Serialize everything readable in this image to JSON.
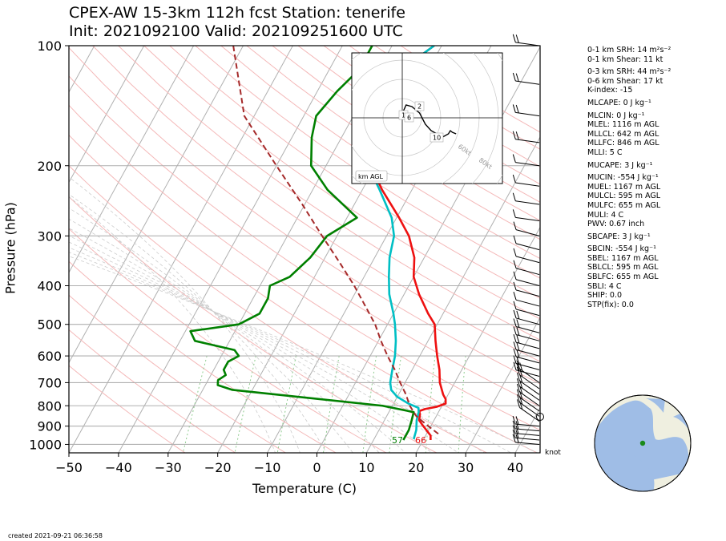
{
  "title_line1": "CPEX-AW 15-3km  112h fcst  Station: tenerife",
  "title_line2": "Init: 2021092100  Valid: 202109251600 UTC",
  "created": "created 2021-09-21 06:36:58",
  "knot_label": "knot",
  "hodograph": {
    "label": "km AGL",
    "ring_labels": [
      "60kt",
      "80kt"
    ],
    "height_labels": [
      "2",
      "1",
      "6",
      "10"
    ],
    "trace": [
      [
        1,
        1
      ],
      [
        0.5,
        4
      ],
      [
        2,
        8
      ],
      [
        5,
        7
      ],
      [
        9,
        3
      ],
      [
        12,
        -4
      ],
      [
        15,
        -8
      ],
      [
        18,
        -10
      ],
      [
        21,
        -12
      ],
      [
        24,
        -10
      ],
      [
        25,
        -8
      ],
      [
        26,
        -9
      ],
      [
        28,
        -10
      ]
    ]
  },
  "indices": [
    "0-1 km SRH: 14 m²s⁻²",
    "0-1 km Shear: 11 kt",
    "0-3 km SRH: 44 m²s⁻²",
    "0-6 km Shear: 17 kt",
    "K-index: -15",
    "MLCAPE: 0 J kg⁻¹",
    "MLCIN: 0 J kg⁻¹",
    "MLEL: 1116 m AGL",
    "MLLCL: 642 m AGL",
    "MLLFC: 846 m AGL",
    "MLLI: 5 C",
    "MUCAPE: 3 J kg⁻¹",
    "MUCIN: -554 J kg⁻¹",
    "MUEL: 1167 m AGL",
    "MULCL: 595 m AGL",
    "MULFC: 655 m AGL",
    "MULI: 4 C",
    "PWV: 0.67 inch",
    "SBCAPE: 3 J kg⁻¹",
    "SBCIN: -554 J kg⁻¹",
    "SBEL: 1167 m AGL",
    "SBLCL: 595 m AGL",
    "SBLFC: 655 m AGL",
    "SBLI: 4 C",
    "SHIP: 0.0",
    "STP(fix): 0.0"
  ],
  "chart_data": {
    "type": "line",
    "xlabel": "Temperature (C)",
    "ylabel": "Pressure (hPa)",
    "xlim": [
      -50,
      45
    ],
    "ylim": [
      1050,
      100
    ],
    "y_scale": "log",
    "x_ticks": [
      "−50",
      "−40",
      "−30",
      "−20",
      "−10",
      "0",
      "10",
      "20",
      "30",
      "40"
    ],
    "x_tick_values": [
      -50,
      -40,
      -30,
      -20,
      -10,
      0,
      10,
      20,
      30,
      40
    ],
    "y_ticks": [
      "100",
      "200",
      "300",
      "400",
      "500",
      "600",
      "700",
      "800",
      "900",
      "1000"
    ],
    "y_tick_values": [
      100,
      200,
      300,
      400,
      500,
      600,
      700,
      800,
      900,
      1000
    ],
    "surface_temp_label": "66",
    "surface_dewpoint_label": "57",
    "colors": {
      "temperature": "#ee1111",
      "virtual_temperature": "#00bfc4",
      "dewpoint": "#008000",
      "parcel": "#a52a2a",
      "isobar": "#b0b0b0",
      "dry_adiabat": "#f4b8b8",
      "moist_adiabat": "#cccccc",
      "mixing_ratio": "#8fcc8f"
    },
    "series": [
      {
        "key": "temperature",
        "points": [
          [
            100,
            -21.5
          ],
          [
            115,
            -25.5
          ],
          [
            130,
            -29
          ],
          [
            150,
            -28.5
          ],
          [
            170,
            -26
          ],
          [
            200,
            -21
          ],
          [
            230,
            -16
          ],
          [
            270,
            -9.5
          ],
          [
            300,
            -5.5
          ],
          [
            340,
            -2
          ],
          [
            380,
            0
          ],
          [
            420,
            3
          ],
          [
            470,
            7
          ],
          [
            500,
            9.5
          ],
          [
            550,
            11.5
          ],
          [
            600,
            13.5
          ],
          [
            650,
            15.5
          ],
          [
            700,
            17
          ],
          [
            750,
            19
          ],
          [
            770,
            20
          ],
          [
            790,
            20.5
          ],
          [
            805,
            19
          ],
          [
            815,
            17
          ],
          [
            825,
            16
          ],
          [
            840,
            16.5
          ],
          [
            870,
            17
          ],
          [
            900,
            18.5
          ],
          [
            950,
            21
          ],
          [
            975,
            21.5
          ]
        ]
      },
      {
        "key": "virtual_temperature",
        "points": [
          [
            100,
            -21.5
          ],
          [
            115,
            -25.5
          ],
          [
            130,
            -29
          ],
          [
            150,
            -28.8
          ],
          [
            170,
            -26.5
          ],
          [
            200,
            -21.5
          ],
          [
            230,
            -16.5
          ],
          [
            270,
            -11
          ],
          [
            300,
            -8.5
          ],
          [
            340,
            -7
          ],
          [
            380,
            -5
          ],
          [
            420,
            -3
          ],
          [
            470,
            0
          ],
          [
            500,
            1.5
          ],
          [
            550,
            3.5
          ],
          [
            600,
            5
          ],
          [
            650,
            6
          ],
          [
            700,
            7
          ],
          [
            730,
            8
          ],
          [
            760,
            10
          ],
          [
            790,
            13
          ],
          [
            810,
            15.5
          ],
          [
            830,
            16
          ],
          [
            870,
            16.5
          ],
          [
            920,
            17.5
          ],
          [
            970,
            18
          ]
        ]
      },
      {
        "key": "dewpoint",
        "points": [
          [
            100,
            -34
          ],
          [
            115,
            -34
          ],
          [
            130,
            -36
          ],
          [
            150,
            -37.5
          ],
          [
            170,
            -36
          ],
          [
            200,
            -33
          ],
          [
            230,
            -27
          ],
          [
            270,
            -18
          ],
          [
            300,
            -22
          ],
          [
            340,
            -23
          ],
          [
            380,
            -25
          ],
          [
            400,
            -28
          ],
          [
            430,
            -27
          ],
          [
            470,
            -27
          ],
          [
            500,
            -30
          ],
          [
            520,
            -39
          ],
          [
            550,
            -37
          ],
          [
            580,
            -28
          ],
          [
            600,
            -26.5
          ],
          [
            620,
            -28
          ],
          [
            650,
            -28
          ],
          [
            670,
            -27
          ],
          [
            690,
            -28
          ],
          [
            710,
            -27.5
          ],
          [
            730,
            -24
          ],
          [
            800,
            8
          ],
          [
            830,
            15
          ],
          [
            870,
            15.5
          ],
          [
            920,
            16
          ],
          [
            975,
            16
          ]
        ]
      },
      {
        "key": "parcel",
        "points": [
          [
            100,
            -62
          ],
          [
            150,
            -52
          ],
          [
            200,
            -40
          ],
          [
            250,
            -30.5
          ],
          [
            300,
            -23
          ],
          [
            350,
            -16.5
          ],
          [
            400,
            -11
          ],
          [
            450,
            -6.5
          ],
          [
            500,
            -2.5
          ],
          [
            550,
            0.5
          ],
          [
            600,
            3.5
          ],
          [
            650,
            6.5
          ],
          [
            700,
            9
          ],
          [
            750,
            11.5
          ],
          [
            800,
            13.5
          ],
          [
            850,
            16
          ],
          [
            900,
            19.5
          ],
          [
            950,
            23
          ]
        ]
      }
    ]
  }
}
